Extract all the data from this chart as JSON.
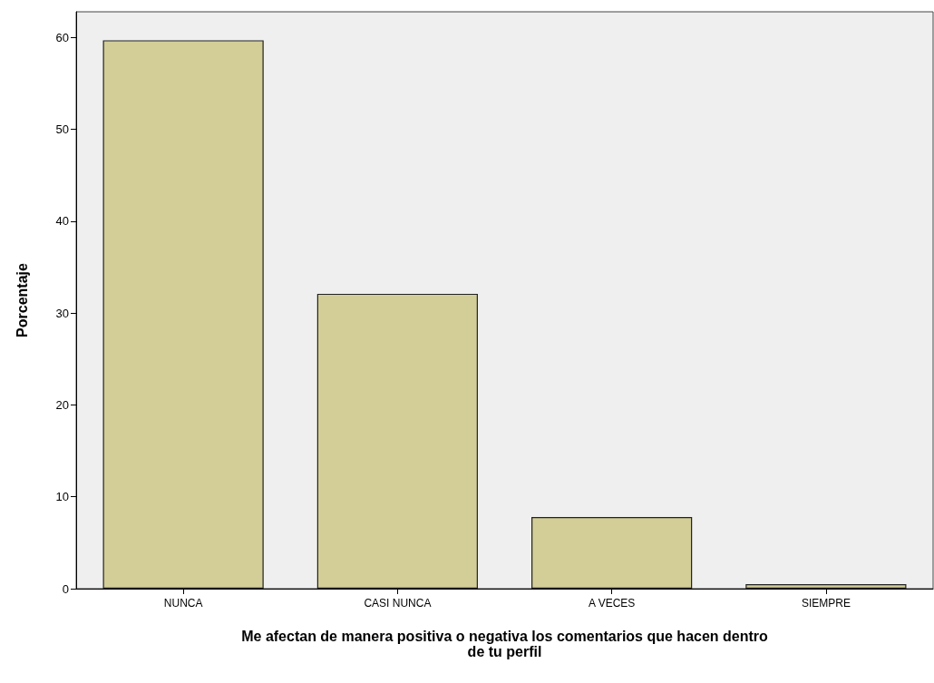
{
  "chart_data": {
    "type": "bar",
    "xlabel": "Me afectan de manera positiva o negativa los comentarios que hacen dentro\nde tu perfil",
    "ylabel": "Porcentaje",
    "categories": [
      "NUNCA",
      "CASI NUNCA",
      "A VECES",
      "SIEMPRE"
    ],
    "values": [
      59.7,
      32.1,
      7.8,
      0.5
    ],
    "color": "#d3ce98",
    "ylim": [
      0,
      62.8
    ],
    "yticks": [
      0,
      10,
      20,
      30,
      40,
      50,
      60
    ],
    "grid": false
  }
}
